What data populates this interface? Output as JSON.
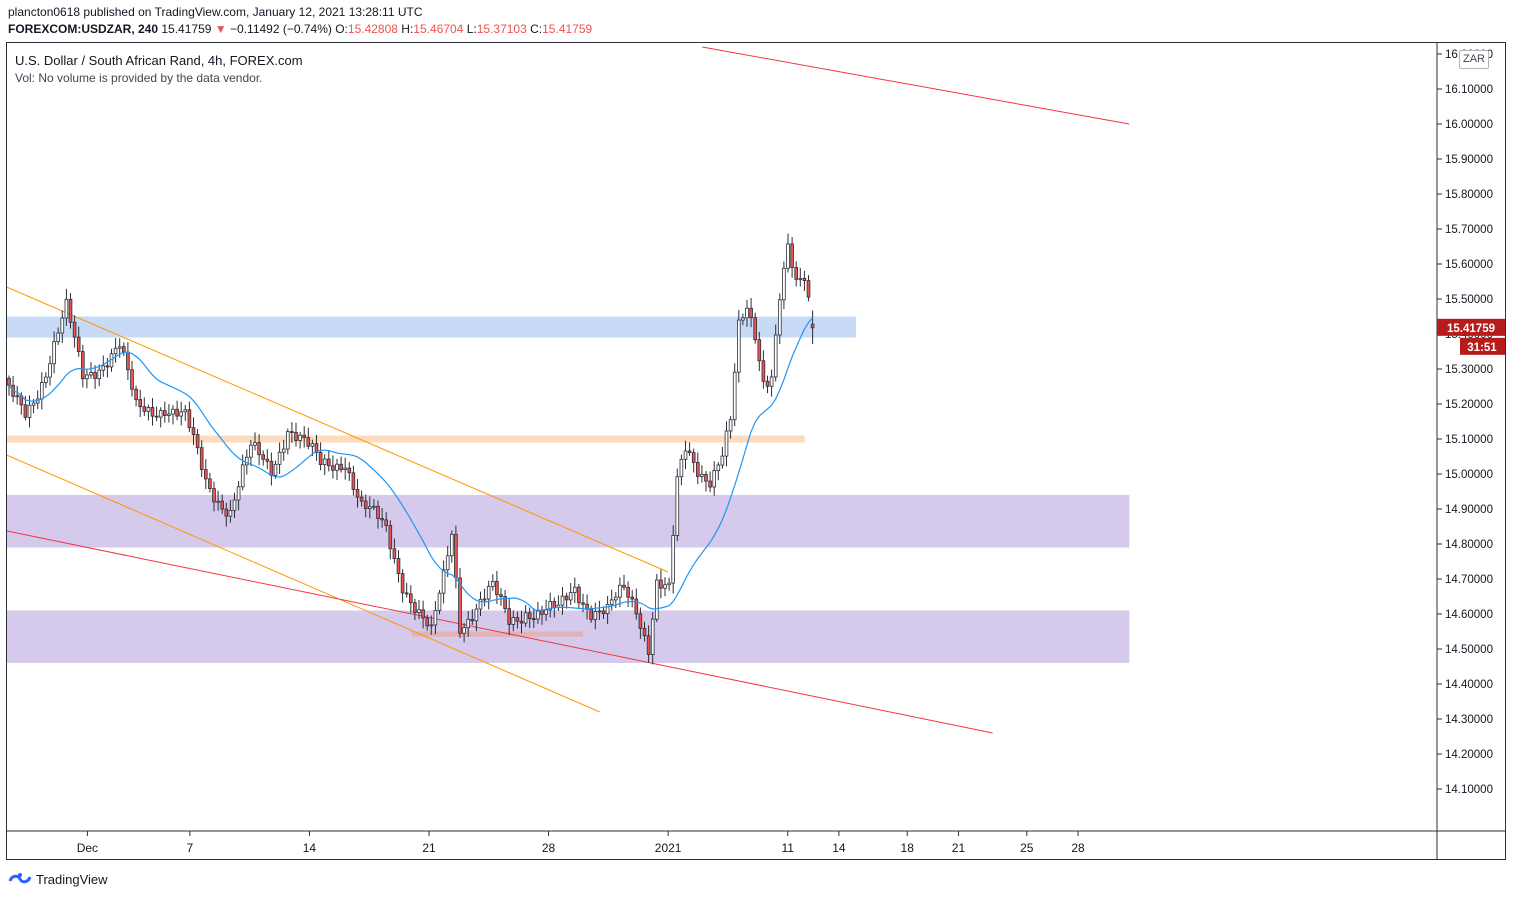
{
  "header": {
    "publisher_line": "plancton0618 published on TradingView.com, January 12, 2021 13:28:11 UTC",
    "symbol": "FOREXCOM:USDZAR, 240",
    "last": "15.41759",
    "change_arrow": "▼",
    "change": "−0.11492 (−0.74%)",
    "o_label": "O:",
    "o_value": "15.42808",
    "h_label": "H:",
    "h_value": "15.46704",
    "l_label": "L:",
    "l_value": "15.37103",
    "c_label": "C:",
    "c_value": "15.41759"
  },
  "legend": {
    "title": "U.S. Dollar / South African Rand, 4h, FOREX.com",
    "volume_note": "Vol: No volume is provided by the data vendor."
  },
  "currency_badge": "ZAR",
  "price_label": {
    "value": "15.41759",
    "countdown": "31:51"
  },
  "footer": {
    "brand": "TradingView"
  },
  "colors": {
    "up": "#26a69a",
    "down": "#ef5350",
    "ma": "#2196f3",
    "candle_body_up": "#ffffff",
    "channel": "#ff9800",
    "trendline": "#f23645",
    "zone_blue": "#c7dbf7",
    "zone_orange": "#fddcbd",
    "zone_purple": "#d5c9ec",
    "zone_rose": "#e2b3b6",
    "price_label_bg": "#b71c1c"
  },
  "chart_data": {
    "type": "candlestick",
    "symbol": "USDZAR",
    "timeframe": "4h",
    "y_axis": {
      "min": 14.0,
      "max": 16.22,
      "tick_labels": [
        "14.10000",
        "14.20000",
        "14.30000",
        "14.40000",
        "14.50000",
        "14.60000",
        "14.70000",
        "14.80000",
        "14.90000",
        "15.00000",
        "15.10000",
        "15.20000",
        "15.30000",
        "15.40000",
        "15.50000",
        "15.60000",
        "15.70000",
        "15.80000",
        "15.90000",
        "16.00000",
        "16.10000",
        "16.20000"
      ],
      "tick_values": [
        14.1,
        14.2,
        14.3,
        14.4,
        14.5,
        14.6,
        14.7,
        14.8,
        14.9,
        15.0,
        15.1,
        15.2,
        15.3,
        15.4,
        15.5,
        15.6,
        15.7,
        15.8,
        15.9,
        16.0,
        16.1,
        16.2
      ]
    },
    "x_axis": {
      "tick_labels": [
        "Dec",
        "7",
        "14",
        "21",
        "28",
        "2021",
        "11",
        "14",
        "18",
        "21",
        "25",
        "28"
      ],
      "tick_dates": [
        "2020-12-01",
        "2020-12-07",
        "2020-12-14",
        "2020-12-21",
        "2020-12-28",
        "2021-01-04",
        "2021-01-11",
        "2021-01-14",
        "2021-01-18",
        "2021-01-21",
        "2021-01-25",
        "2021-01-28"
      ]
    },
    "zones": [
      {
        "name": "blue",
        "from": 15.39,
        "to": 15.45,
        "start": "2020-11-26",
        "end": "2021-01-15"
      },
      {
        "name": "orange",
        "from": 15.09,
        "to": 15.11,
        "start": "2020-11-26",
        "end": "2021-01-12"
      },
      {
        "name": "purple-upper",
        "from": 14.79,
        "to": 14.94,
        "start": "2020-11-26",
        "end": "2021-01-31"
      },
      {
        "name": "purple-lower",
        "from": 14.46,
        "to": 14.61,
        "start": "2020-11-26",
        "end": "2021-01-31"
      },
      {
        "name": "rose",
        "from": 14.535,
        "to": 14.55,
        "start": "2020-12-20",
        "end": "2020-12-30"
      }
    ],
    "lines": [
      {
        "name": "channel-upper",
        "from": [
          "2020-11-26",
          15.54
        ],
        "to": [
          "2021-01-04",
          14.72
        ]
      },
      {
        "name": "channel-lower",
        "from": [
          "2020-11-26",
          15.06
        ],
        "to": [
          "2020-12-31",
          14.32
        ]
      },
      {
        "name": "resistance",
        "from": [
          "2021-01-06",
          16.22
        ],
        "to": [
          "2021-01-31",
          16.0
        ]
      },
      {
        "name": "support",
        "from": [
          "2020-11-26",
          14.84
        ],
        "to": [
          "2021-01-23",
          14.26
        ]
      }
    ],
    "anchors": [
      {
        "t": 0,
        "c": 15.22
      },
      {
        "t": 4,
        "c": 15.18
      },
      {
        "t": 9,
        "c": 15.3
      },
      {
        "t": 14,
        "c": 15.46
      },
      {
        "t": 18,
        "c": 15.28
      },
      {
        "t": 22,
        "c": 15.32
      },
      {
        "t": 27,
        "c": 15.36
      },
      {
        "t": 31,
        "c": 15.18
      },
      {
        "t": 38,
        "c": 15.2
      },
      {
        "t": 43,
        "c": 15.15
      },
      {
        "t": 48,
        "c": 14.98
      },
      {
        "t": 54,
        "c": 14.9
      },
      {
        "t": 59,
        "c": 15.06
      },
      {
        "t": 64,
        "c": 15.02
      },
      {
        "t": 68,
        "c": 15.14
      },
      {
        "t": 72,
        "c": 15.08
      },
      {
        "t": 76,
        "c": 15.02
      },
      {
        "t": 82,
        "c": 15.05
      },
      {
        "t": 86,
        "c": 14.9
      },
      {
        "t": 92,
        "c": 14.84
      },
      {
        "t": 96,
        "c": 14.7
      },
      {
        "t": 100,
        "c": 14.6
      },
      {
        "t": 103,
        "c": 14.53
      },
      {
        "t": 106,
        "c": 14.7
      },
      {
        "t": 108,
        "c": 14.84
      },
      {
        "t": 110,
        "c": 14.58
      },
      {
        "t": 114,
        "c": 14.62
      },
      {
        "t": 118,
        "c": 14.66
      },
      {
        "t": 122,
        "c": 14.58
      },
      {
        "t": 126,
        "c": 14.62
      },
      {
        "t": 130,
        "c": 14.6
      },
      {
        "t": 134,
        "c": 14.6
      },
      {
        "t": 138,
        "c": 14.68
      },
      {
        "t": 142,
        "c": 14.62
      },
      {
        "t": 146,
        "c": 14.6
      },
      {
        "t": 150,
        "c": 14.66
      },
      {
        "t": 153,
        "c": 14.62
      },
      {
        "t": 156,
        "c": 14.52
      },
      {
        "t": 158,
        "c": 14.7
      },
      {
        "t": 161,
        "c": 14.66
      },
      {
        "t": 163,
        "c": 14.96
      },
      {
        "t": 165,
        "c": 15.06
      },
      {
        "t": 168,
        "c": 15.02
      },
      {
        "t": 171,
        "c": 15.0
      },
      {
        "t": 174,
        "c": 15.06
      },
      {
        "t": 176,
        "c": 15.14
      },
      {
        "t": 178,
        "c": 15.4
      },
      {
        "t": 180,
        "c": 15.46
      },
      {
        "t": 182,
        "c": 15.4
      },
      {
        "t": 184,
        "c": 15.28
      },
      {
        "t": 186,
        "c": 15.3
      },
      {
        "t": 188,
        "c": 15.52
      },
      {
        "t": 190,
        "c": 15.64
      },
      {
        "t": 192,
        "c": 15.52
      },
      {
        "t": 194,
        "c": 15.54
      },
      {
        "t": 196,
        "c": 15.42
      }
    ],
    "last_bar": {
      "open": 15.42808,
      "high": 15.46704,
      "low": 15.37103,
      "close": 15.41759
    }
  }
}
